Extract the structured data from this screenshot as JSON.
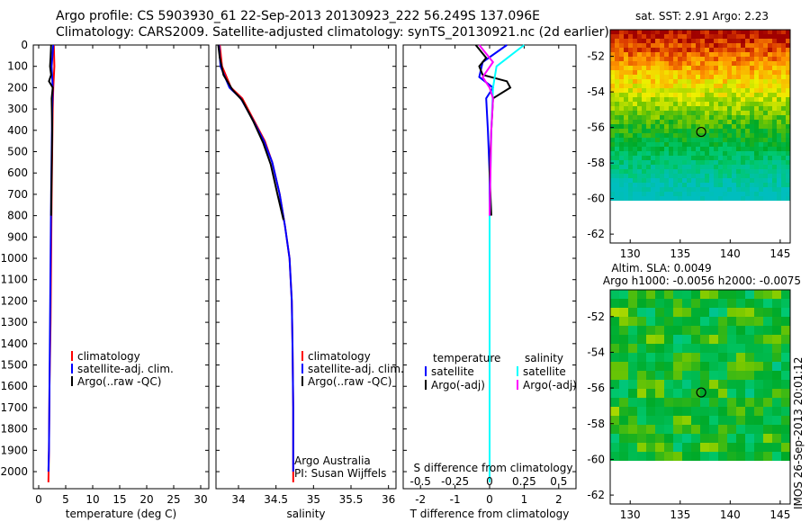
{
  "title_line1": "Argo profile: CS 5903930_61 22-Sep-2013 20130923_222 56.249S 137.096E",
  "title_line2": "Climatology: CARS2009. Satellite-adjusted climatology: synTS_20130921.nc (2d earlier)",
  "footer_stamp": "IMOS 26-Sep-2013 20:01:12",
  "colors": {
    "climatology": "#ff0000",
    "satellite": "#0000ff",
    "argo": "#000000",
    "s_satellite": "#00ffff",
    "s_argo": "#ff00ff"
  },
  "chart_data": [
    {
      "id": "temperature",
      "type": "line",
      "xlabel": "temperature (deg C)",
      "ylabel": "",
      "xlim": [
        -1,
        31.5
      ],
      "ylim": [
        2080,
        0
      ],
      "xticks": [
        0,
        5,
        10,
        15,
        20,
        25,
        30
      ],
      "xtick_labels": [
        "0",
        "5",
        "10",
        "15",
        "20",
        "25",
        "30"
      ],
      "yticks": [
        0,
        100,
        200,
        300,
        400,
        500,
        600,
        700,
        800,
        900,
        1000,
        1100,
        1200,
        1300,
        1400,
        1500,
        1600,
        1700,
        1800,
        1900,
        2000
      ],
      "ytick_labels": [
        "0",
        "100",
        "200",
        "300",
        "400",
        "500",
        "600",
        "700",
        "800",
        "900",
        "1000",
        "1100",
        "1200",
        "1300",
        "1400",
        "1500",
        "1600",
        "1700",
        "1800",
        "1900",
        "2000"
      ],
      "legend": [
        "climatology",
        "satellite-adj. clim.",
        "Argo(..raw -QC)"
      ],
      "series": [
        {
          "name": "climatology",
          "color": "#ff0000",
          "x": [
            2.8,
            2.9,
            2.8,
            2.7,
            2.6,
            2.5,
            2.4,
            2.3,
            2.2,
            2.0,
            1.9,
            1.8
          ],
          "y": [
            0,
            100,
            150,
            200,
            300,
            500,
            700,
            1000,
            1300,
            1600,
            1900,
            2050
          ]
        },
        {
          "name": "satellite-adj. clim.",
          "color": "#0000ff",
          "x": [
            2.7,
            2.4,
            2.5,
            2.6,
            2.5,
            2.4,
            2.3,
            2.2,
            2.1,
            2.0,
            1.9,
            1.8
          ],
          "y": [
            0,
            100,
            150,
            200,
            300,
            500,
            700,
            1000,
            1300,
            1600,
            1900,
            2000
          ]
        },
        {
          "name": "Argo(..raw -QC)",
          "color": "#000000",
          "x": [
            2.3,
            2.2,
            2.1,
            2.3,
            1.9,
            2.6,
            2.4,
            2.5,
            2.4,
            2.3
          ],
          "y": [
            0,
            60,
            100,
            140,
            170,
            200,
            250,
            400,
            600,
            800
          ]
        }
      ]
    },
    {
      "id": "salinity",
      "type": "line",
      "xlabel": "salinity",
      "ylabel": "",
      "xlim": [
        33.7,
        36.1
      ],
      "ylim": [
        2080,
        0
      ],
      "xticks": [
        34,
        34.5,
        35,
        35.5,
        36
      ],
      "xtick_labels": [
        "34",
        "34.5",
        "35",
        "35.5",
        "36"
      ],
      "legend": [
        "climatology",
        "satellite-adj. clim.",
        "Argo(..raw -QC)"
      ],
      "annotation": [
        "Argo Australia",
        "PI: Susan Wijffels"
      ],
      "series": [
        {
          "name": "climatology",
          "color": "#ff0000",
          "x": [
            33.75,
            33.78,
            33.9,
            34.05,
            34.2,
            34.35,
            34.45,
            34.55,
            34.62,
            34.68,
            34.71,
            34.72,
            34.73,
            34.73
          ],
          "y": [
            0,
            100,
            200,
            250,
            350,
            450,
            550,
            700,
            850,
            1000,
            1200,
            1400,
            1700,
            2050
          ]
        },
        {
          "name": "satellite-adj. clim.",
          "color": "#0000ff",
          "x": [
            33.74,
            33.76,
            33.88,
            34.03,
            34.19,
            34.34,
            34.45,
            34.55,
            34.62,
            34.68,
            34.71,
            34.72,
            34.73,
            34.73
          ],
          "y": [
            0,
            100,
            200,
            250,
            350,
            450,
            550,
            700,
            850,
            1000,
            1200,
            1400,
            1700,
            2000
          ]
        },
        {
          "name": "Argo(..raw -QC)",
          "color": "#000000",
          "x": [
            33.73,
            33.75,
            33.8,
            33.92,
            34.05,
            34.2,
            34.33,
            34.43,
            34.52,
            34.6
          ],
          "y": [
            0,
            60,
            140,
            210,
            260,
            360,
            460,
            560,
            700,
            820
          ]
        }
      ]
    },
    {
      "id": "difference",
      "type": "line",
      "xlabel": "T difference from climatology",
      "xlabel2": "S difference from climatology",
      "xlim": [
        -2.5,
        2.5
      ],
      "ylim": [
        2080,
        0
      ],
      "xticks": [
        -2,
        -1,
        0,
        1,
        2
      ],
      "xtick_labels": [
        "-2",
        "-1",
        "0",
        "1",
        "2"
      ],
      "xticks2": [
        -2,
        -1,
        0,
        1,
        2
      ],
      "xtick_labels2": [
        "-0.5",
        "-0.25",
        "0",
        "0.25",
        "0.5"
      ],
      "legend_headers": [
        "temperature",
        "salinity"
      ],
      "legend": [
        "satellite",
        "Argo(-adj)",
        "satellite",
        "Argo(-adj)"
      ],
      "series": [
        {
          "name": "temperature satellite",
          "color": "#0000ff",
          "x": [
            0.5,
            -0.2,
            -0.3,
            0.1,
            -0.1,
            -0.05,
            0,
            0,
            0,
            0
          ],
          "y": [
            0,
            80,
            150,
            200,
            250,
            400,
            600,
            800,
            1000,
            1100
          ]
        },
        {
          "name": "temperature Argo(-adj)",
          "color": "#000000",
          "x": [
            -0.4,
            -0.1,
            -0.3,
            -0.2,
            0.5,
            0.6,
            0.1,
            0.05,
            0,
            0.05
          ],
          "y": [
            0,
            60,
            100,
            140,
            170,
            200,
            250,
            400,
            600,
            800
          ]
        },
        {
          "name": "salinity satellite",
          "color": "#00ffff",
          "x": [
            1.0,
            0.2,
            0.1,
            0.05,
            0,
            0,
            0,
            0
          ],
          "y": [
            0,
            100,
            200,
            400,
            800,
            1200,
            1600,
            2050
          ]
        },
        {
          "name": "salinity Argo(-adj)",
          "color": "#ff00ff",
          "x": [
            -0.3,
            0.1,
            -0.2,
            0.0,
            0.1,
            0.05,
            0
          ],
          "y": [
            0,
            80,
            150,
            200,
            250,
            400,
            800
          ]
        }
      ]
    },
    {
      "id": "sst-map",
      "type": "heatmap",
      "title": "sat. SST: 2.91  Argo: 2.23",
      "xlim": [
        128,
        146
      ],
      "ylim": [
        -62.5,
        -50.5
      ],
      "xticks": [
        130,
        135,
        140,
        145
      ],
      "xtick_labels": [
        "130",
        "135",
        "140",
        "145"
      ],
      "yticks": [
        -52,
        -54,
        -56,
        -58,
        -60,
        -62
      ],
      "ytick_labels": [
        "-52",
        "-54",
        "-56",
        "-58",
        "-60",
        "-62"
      ],
      "data_lat_min": -60,
      "marker": {
        "lon": 137.1,
        "lat": -56.25
      }
    },
    {
      "id": "sla-map",
      "type": "heatmap",
      "title": "Altim. SLA: 0.0049",
      "subtitle": "Argo h1000: -0.0056  h2000: -0.0075",
      "xlim": [
        128,
        146
      ],
      "ylim": [
        -62.5,
        -50.5
      ],
      "xticks": [
        130,
        135,
        140,
        145
      ],
      "xtick_labels": [
        "130",
        "135",
        "140",
        "145"
      ],
      "yticks": [
        -52,
        -54,
        -56,
        -58,
        -60,
        -62
      ],
      "ytick_labels": [
        "-52",
        "-54",
        "-56",
        "-58",
        "-60",
        "-62"
      ],
      "data_lat_min": -60,
      "marker": {
        "lon": 137.1,
        "lat": -56.25
      }
    }
  ]
}
